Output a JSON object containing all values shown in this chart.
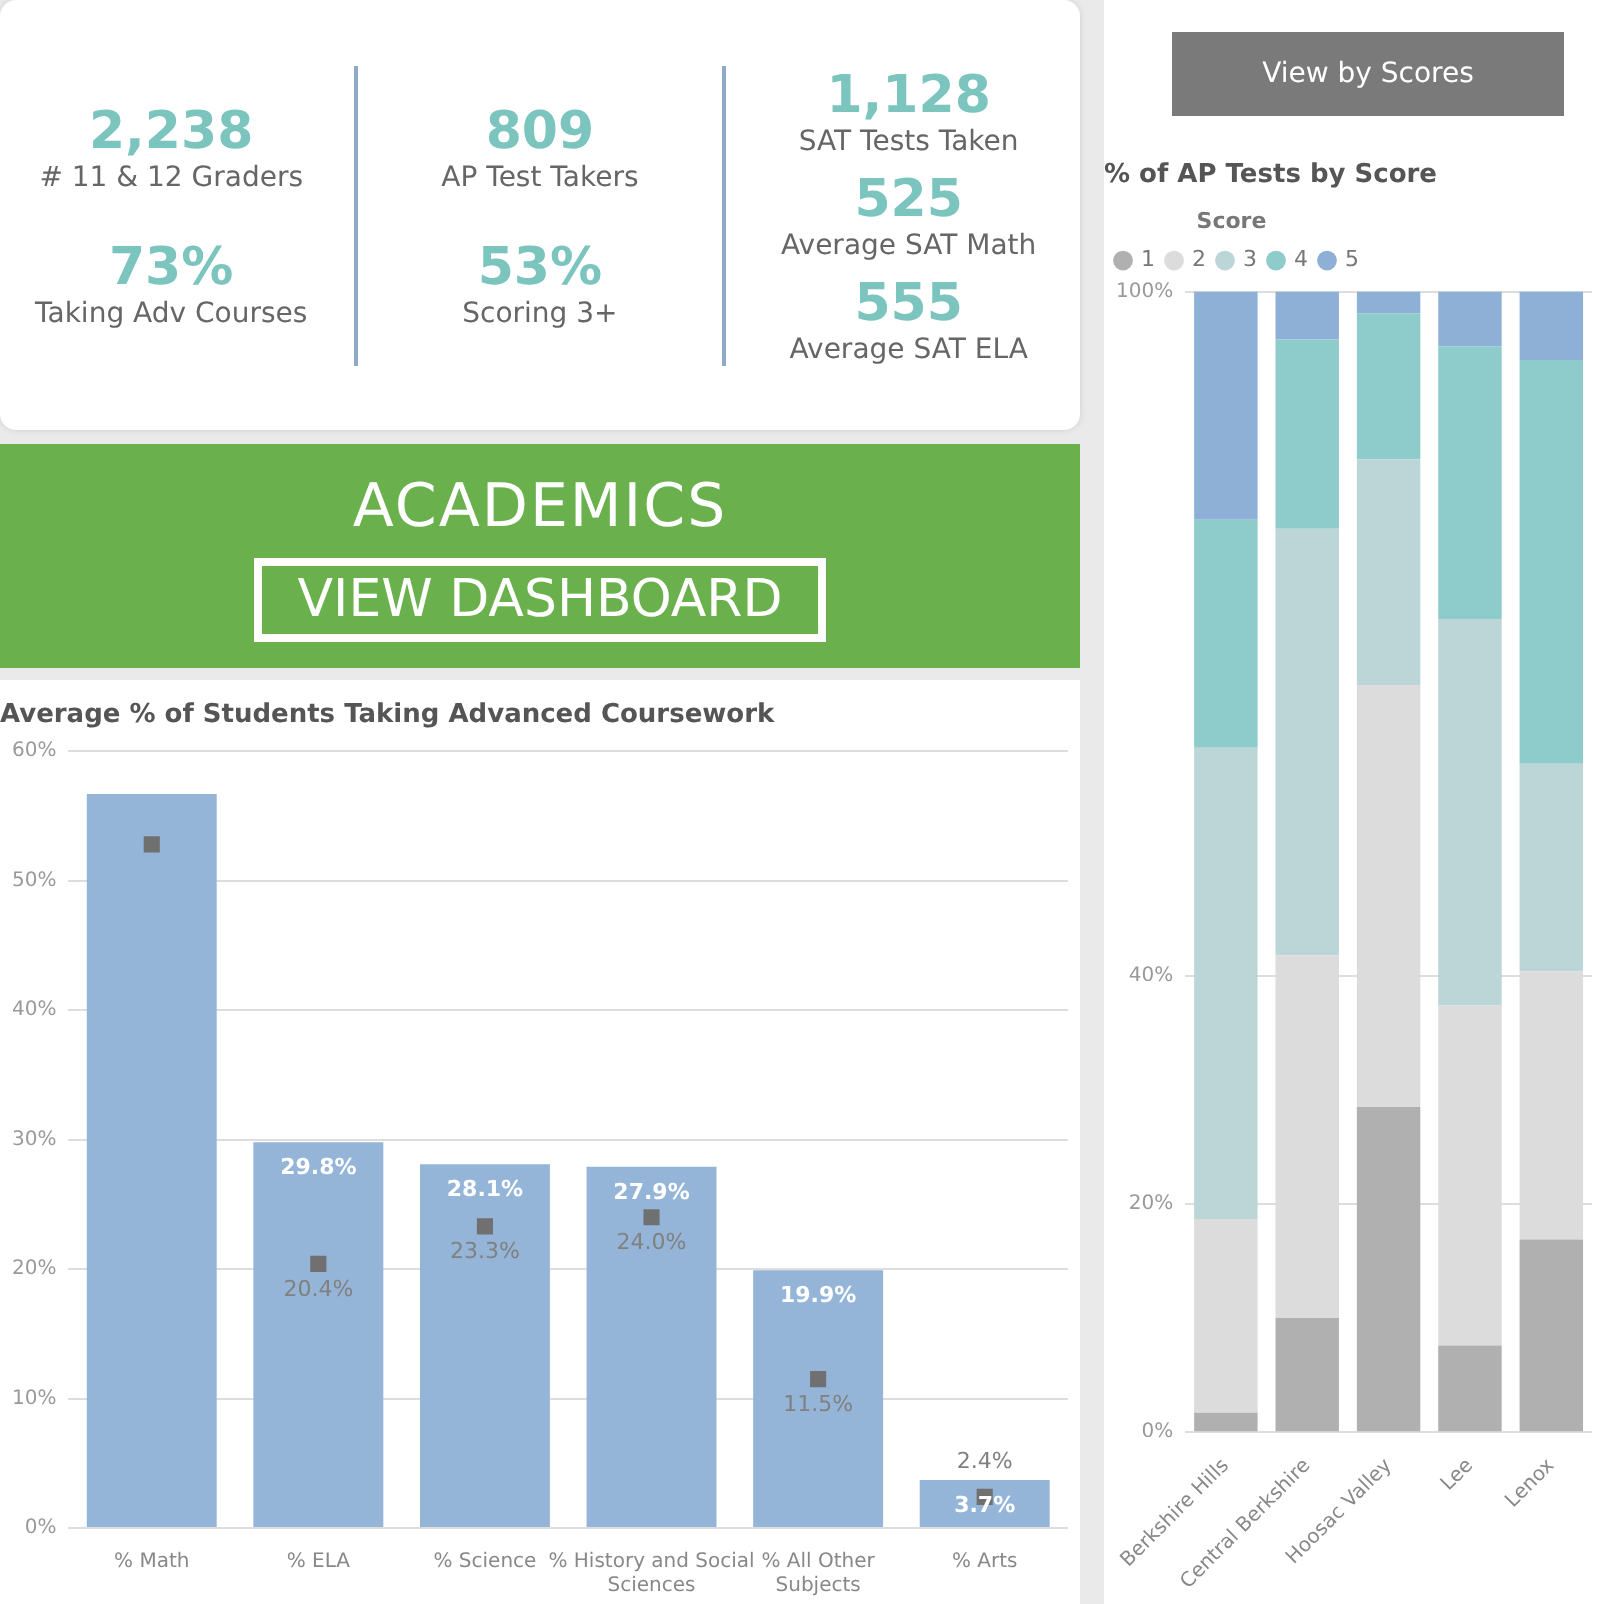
{
  "chart_data": [
    {
      "type": "other",
      "annotations": [
        "2,238",
        "# 11 & 12 Graders",
        "73%",
        "Taking Adv Courses",
        "809",
        "AP Test Takers",
        "53%",
        "Scoring 3+",
        "1,128",
        "SAT Tests Taken",
        "525",
        "Average SAT Math",
        "555",
        "Average SAT ELA"
      ]
    },
    {
      "type": "bar",
      "title": "Average % of Students Taking Advanced Coursework",
      "categories": [
        "% Math",
        "% ELA",
        "% Science",
        "% History and Social Sciences",
        "% All Other Subjects",
        "% Arts"
      ],
      "series": [
        {
          "type": "bar",
          "color": "#95b5d8",
          "values": [
            56.7,
            29.8,
            28.1,
            27.9,
            19.9,
            3.7
          ],
          "value_labels": [
            null,
            "29.8%",
            "28.1%",
            "27.9%",
            "19.9%",
            "3.7%"
          ]
        },
        {
          "type": "scatter",
          "marker": "square",
          "color": "#707070",
          "x": [
            "% Math",
            "% ELA",
            "% Science",
            "% History and Social Sciences",
            "% All Other Subjects",
            "% Arts"
          ],
          "values": [
            52.8,
            20.4,
            23.3,
            24.0,
            11.5,
            2.4
          ],
          "value_labels": [
            null,
            "20.4%",
            "23.3%",
            "24.0%",
            "11.5%",
            "2.4%"
          ]
        }
      ],
      "ylim": [
        0,
        60
      ],
      "yticks": [
        {
          "value": 0,
          "label": "0%"
        },
        {
          "value": 10,
          "label": "10%"
        },
        {
          "value": 20,
          "label": "20%"
        },
        {
          "value": 30,
          "label": "30%"
        },
        {
          "value": 40,
          "label": "40%"
        },
        {
          "value": 50,
          "label": "50%"
        },
        {
          "value": 60,
          "label": "60%"
        }
      ],
      "grid": "y",
      "annotations": [
        "ACADEMICS",
        "VIEW DASHBOARD"
      ]
    },
    {
      "type": "bar",
      "stacked": true,
      "title": "% of AP Tests by Score",
      "legend_title": "Score",
      "legend": "top left",
      "categories": [
        "Berkshire Hills",
        "Central Berkshire",
        "Hoosac Valley",
        "Lee",
        "Lenox"
      ],
      "series": [
        {
          "name": "1",
          "color": "#b0b0b0",
          "values": [
            1.7,
            10.0,
            28.5,
            7.6,
            16.9
          ]
        },
        {
          "name": "2",
          "color": "#dcdcdc",
          "values": [
            17.0,
            31.8,
            37.0,
            29.8,
            23.5
          ]
        },
        {
          "name": "3",
          "color": "#bcd6d8",
          "values": [
            41.3,
            37.4,
            19.8,
            33.9,
            18.2
          ]
        },
        {
          "name": "4",
          "color": "#8ecbcb",
          "values": [
            20.0,
            16.6,
            12.8,
            23.9,
            35.4
          ]
        },
        {
          "name": "5",
          "color": "#8fb0d6",
          "values": [
            20.0,
            4.2,
            1.9,
            4.8,
            6.0
          ]
        }
      ],
      "ylim": [
        0,
        100
      ],
      "yticks": [
        {
          "value": 0,
          "label": "0%"
        },
        {
          "value": 20,
          "label": "20%"
        },
        {
          "value": 40,
          "label": "40%"
        },
        {
          "value": 100,
          "label": "100%"
        }
      ],
      "grid": "y",
      "annotations": [
        "View by Scores"
      ]
    }
  ]
}
